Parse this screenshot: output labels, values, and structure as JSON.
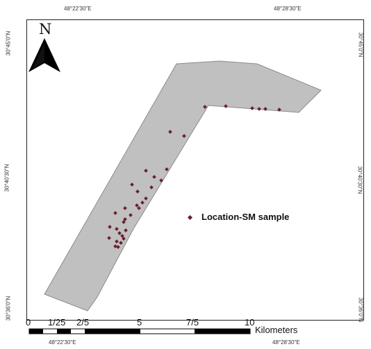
{
  "graticule": {
    "top_left": "48°22'30\"E",
    "top_right": "48°28'30\"E",
    "bottom_left": "48°22'30\"E",
    "bottom_right": "48°28'30\"E",
    "left_top": "30°45'0\"N",
    "left_mid": "30°40'30\"N",
    "left_bottom": "30°36'0\"N",
    "right_top": "30°45'0\"N",
    "right_mid": "30°40'30\"N",
    "right_bottom": "30°36'0\"N"
  },
  "north_arrow": {
    "letter": "N",
    "icon": "north-arrow-icon"
  },
  "legend": {
    "label": "Location-SM sample",
    "marker_color": "#6b1e2e"
  },
  "scale_bar": {
    "labels": [
      "0",
      "1/25",
      "2/5",
      "5",
      "7/5",
      "10"
    ],
    "units": "Kilometers"
  },
  "colors": {
    "study_area": "#c0c0c0",
    "sample_point": "#6b1e2e"
  }
}
